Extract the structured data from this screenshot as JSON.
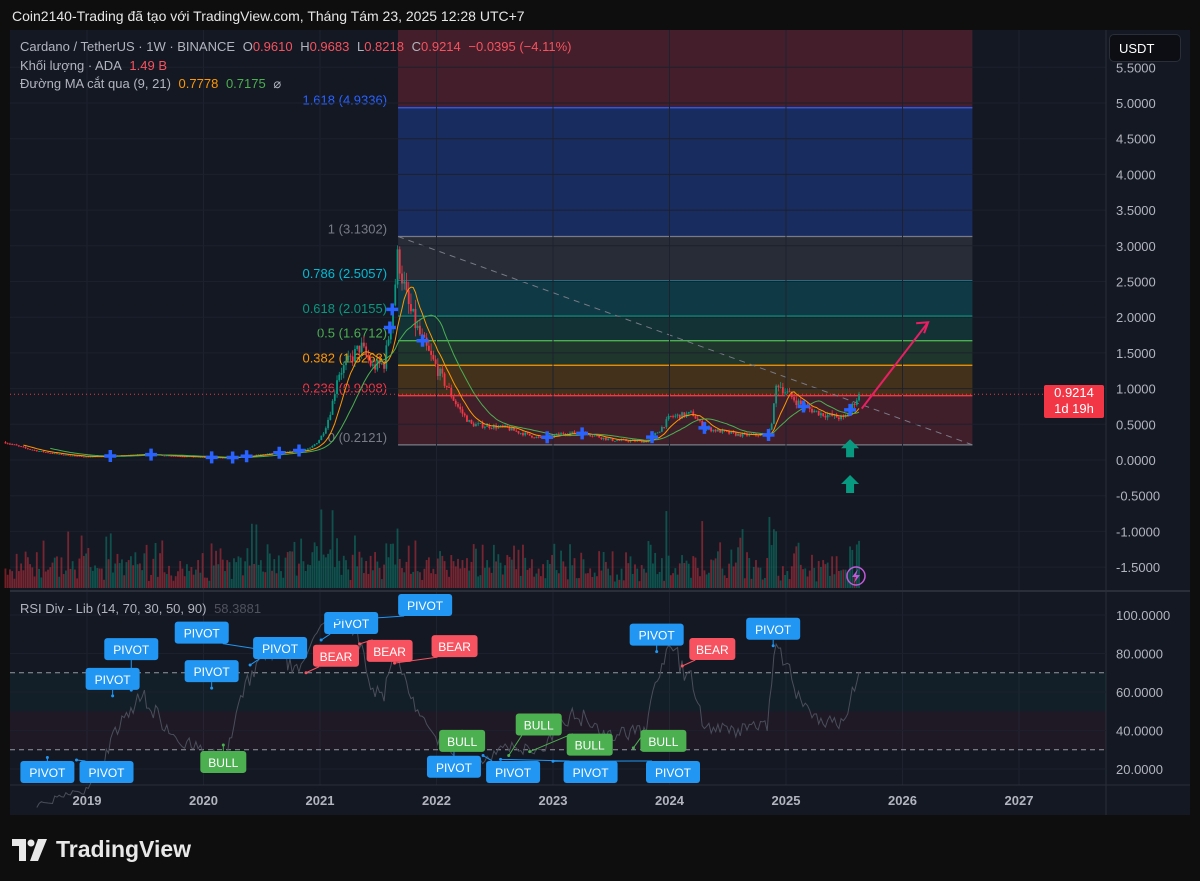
{
  "caption": "Coin2140-Trading đã tạo với TradingView.com, Tháng Tám 23, 2025 12:28 UTC+7",
  "legend": {
    "symbol": "Cardano / TetherUS · 1W · BINANCE",
    "open_label": "O",
    "open": "0.9610",
    "high_label": "H",
    "high": "0.9683",
    "low_label": "L",
    "low": "0.8218",
    "close_label": "C",
    "close": "0.9214",
    "change": "−0.0395 (−4.11%)",
    "volume_label": "Khối lượng · ADA",
    "volume": "1.49 B",
    "ma_label": "Đường MA cắt qua (9, 21)",
    "ma_fast": "0.7778",
    "ma_slow": "0.7175",
    "ma_icon": "⌀"
  },
  "currency_button": "USDT",
  "price_tag": {
    "price": "0.9214",
    "countdown": "1d 19h",
    "color": "#f23645"
  },
  "rsi_legend": {
    "title": "RSI Div - Lib (14, 70, 30, 50, 90)",
    "value": "58.3881"
  },
  "brand": "TradingView",
  "colors": {
    "background": "#141823",
    "up": "#089981",
    "down": "#f23645",
    "ma_fast": "#ff9800",
    "ma_slow": "#4caf50",
    "marker": "#2962ff",
    "arrow": "#e91e63"
  },
  "chart_data": [
    {
      "type": "candlestick",
      "title": "Cardano / TetherUS · 1W · BINANCE",
      "y_ticks": [
        "5.5000",
        "5.0000",
        "4.5000",
        "4.0000",
        "3.5000",
        "3.0000",
        "2.5000",
        "2.0000",
        "1.5000",
        "1.0000",
        "0.5000",
        "0.0000",
        "-0.5000",
        "-1.0000",
        "-1.5000"
      ],
      "ylim": [
        -1.8,
        5.5
      ],
      "x_ticks": [
        "2019",
        "2020",
        "2021",
        "2022",
        "2023",
        "2024",
        "2025",
        "2026",
        "2027"
      ],
      "close_anchors": [
        [
          2018.3,
          0.25
        ],
        [
          2018.6,
          0.12
        ],
        [
          2019.0,
          0.045
        ],
        [
          2019.5,
          0.08
        ],
        [
          2020.0,
          0.04
        ],
        [
          2020.2,
          0.03
        ],
        [
          2020.5,
          0.08
        ],
        [
          2020.9,
          0.15
        ],
        [
          2021.0,
          0.3
        ],
        [
          2021.15,
          1.2
        ],
        [
          2021.35,
          1.6
        ],
        [
          2021.45,
          1.3
        ],
        [
          2021.55,
          1.35
        ],
        [
          2021.67,
          2.9
        ],
        [
          2021.75,
          2.2
        ],
        [
          2021.9,
          1.6
        ],
        [
          2022.0,
          1.3
        ],
        [
          2022.1,
          1.0
        ],
        [
          2022.3,
          0.5
        ],
        [
          2022.6,
          0.45
        ],
        [
          2022.9,
          0.3
        ],
        [
          2023.1,
          0.38
        ],
        [
          2023.3,
          0.37
        ],
        [
          2023.5,
          0.28
        ],
        [
          2023.8,
          0.26
        ],
        [
          2024.0,
          0.6
        ],
        [
          2024.2,
          0.65
        ],
        [
          2024.3,
          0.45
        ],
        [
          2024.6,
          0.35
        ],
        [
          2024.85,
          0.35
        ],
        [
          2024.92,
          1.1
        ],
        [
          2025.0,
          0.95
        ],
        [
          2025.15,
          0.75
        ],
        [
          2025.3,
          0.65
        ],
        [
          2025.5,
          0.58
        ],
        [
          2025.6,
          0.85
        ],
        [
          2025.64,
          0.9214
        ]
      ],
      "last_price": 0.9214,
      "fibonacci": {
        "start_date": 2021.67,
        "end_date": 2026.6,
        "levels": [
          {
            "ratio": "0",
            "price": 0.2121,
            "label": "0 (0.2121)",
            "color": "#787b86"
          },
          {
            "ratio": "0.236",
            "price": 0.9008,
            "label": "0.236 (0.9008)",
            "color": "#f23645"
          },
          {
            "ratio": "0.382",
            "price": 1.3268,
            "label": "0.382 (1.3268)",
            "color": "#ff9800"
          },
          {
            "ratio": "0.5",
            "price": 1.6712,
            "label": "0.5 (1.6712)",
            "color": "#4caf50"
          },
          {
            "ratio": "0.618",
            "price": 2.0155,
            "label": "0.618 (2.0155)",
            "color": "#089981"
          },
          {
            "ratio": "0.786",
            "price": 2.5057,
            "label": "0.786 (2.5057)",
            "color": "#00bcd4"
          },
          {
            "ratio": "1",
            "price": 3.1302,
            "label": "1 (3.1302)",
            "color": "#787b86"
          },
          {
            "ratio": "1.618",
            "price": 4.9336,
            "label": "1.618 (4.9336)",
            "color": "#2962ff"
          }
        ]
      },
      "cross_markers": [
        2019.2,
        2019.55,
        2020.07,
        2020.25,
        2020.37,
        2020.65,
        2020.82,
        2021.6,
        2021.62,
        2021.88,
        2022.95,
        2023.25,
        2023.85,
        2024.3,
        2024.85,
        2025.15,
        2025.55
      ],
      "up_arrows": [
        [
          2025.55,
          0.15
        ],
        [
          2025.55,
          -0.35
        ]
      ],
      "projection_arrow": {
        "from": [
          2025.65,
          0.72
        ],
        "to": [
          2026.22,
          1.93
        ]
      }
    },
    {
      "type": "line",
      "title": "RSI Div - Lib (14, 70, 30, 50, 90)",
      "y_ticks": [
        "100.0000",
        "80.0000",
        "60.0000",
        "40.0000",
        "20.0000"
      ],
      "ylim": [
        13,
        103
      ],
      "bands": [
        70,
        30
      ],
      "labels": [
        {
          "text": "PIVOT",
          "date": 2018.66,
          "rsi": 26,
          "pos": "below",
          "kind": "pivot"
        },
        {
          "text": "PIVOT",
          "date": 2018.91,
          "rsi": 24.7,
          "pos": "below",
          "kind": "pivot"
        },
        {
          "text": "PIVOT",
          "date": 2019.22,
          "rsi": 58,
          "pos": "above",
          "kind": "pivot"
        },
        {
          "text": "PIVOT",
          "date": 2019.38,
          "rsi": 61,
          "pos": "above",
          "kind": "pivot"
        },
        {
          "text": "PIVOT",
          "date": 2020.07,
          "rsi": 62,
          "pos": "above",
          "kind": "pivot"
        },
        {
          "text": "BULL",
          "date": 2020.17,
          "rsi": 32.5,
          "pos": "below",
          "kind": "bull"
        },
        {
          "text": "PIVOT",
          "date": 2020.4,
          "rsi": 74,
          "pos": "above",
          "kind": "pivot"
        },
        {
          "text": "PIVOT",
          "date": 2020.5,
          "rsi": 82,
          "pos": "above",
          "kind": "pivot"
        },
        {
          "text": "BEAR",
          "date": 2020.88,
          "rsi": 70,
          "pos": "above",
          "kind": "bear"
        },
        {
          "text": "PIVOT",
          "date": 2021.01,
          "rsi": 87,
          "pos": "above",
          "kind": "pivot"
        },
        {
          "text": "PIVOT",
          "date": 2021.13,
          "rsi": 97,
          "pos": "above",
          "kind": "pivot"
        },
        {
          "text": "BEAR",
          "date": 2021.34,
          "rsi": 85,
          "pos": "above",
          "kind": "bear"
        },
        {
          "text": "BEAR",
          "date": 2021.64,
          "rsi": 75,
          "pos": "above",
          "kind": "bear"
        },
        {
          "text": "PIVOT",
          "date": 2022.15,
          "rsi": 30,
          "pos": "below",
          "kind": "pivot"
        },
        {
          "text": "BULL",
          "date": 2022.22,
          "rsi": 31,
          "pos": "below",
          "kind": "bull"
        },
        {
          "text": "PIVOT",
          "date": 2022.4,
          "rsi": 27,
          "pos": "below",
          "kind": "pivot"
        },
        {
          "text": "PIVOT",
          "date": 2022.55,
          "rsi": 25,
          "pos": "below",
          "kind": "pivot"
        },
        {
          "text": "BULL",
          "date": 2022.62,
          "rsi": 27,
          "pos": "below",
          "kind": "bull"
        },
        {
          "text": "BULL",
          "date": 2022.8,
          "rsi": 29,
          "pos": "below",
          "kind": "bull"
        },
        {
          "text": "PIVOT",
          "date": 2023.0,
          "rsi": 24,
          "pos": "below",
          "kind": "pivot"
        },
        {
          "text": "BULL",
          "date": 2023.69,
          "rsi": 31,
          "pos": "below",
          "kind": "bull"
        },
        {
          "text": "PIVOT",
          "date": 2023.89,
          "rsi": 81,
          "pos": "above",
          "kind": "pivot"
        },
        {
          "text": "BEAR",
          "date": 2024.11,
          "rsi": 73.5,
          "pos": "above",
          "kind": "bear"
        },
        {
          "text": "PIVOT",
          "date": 2024.89,
          "rsi": 84,
          "pos": "above",
          "kind": "pivot"
        }
      ],
      "label_colors": {
        "pivot": "#2196f3",
        "bull": "#4caf50",
        "bear": "#f7525f"
      }
    }
  ]
}
